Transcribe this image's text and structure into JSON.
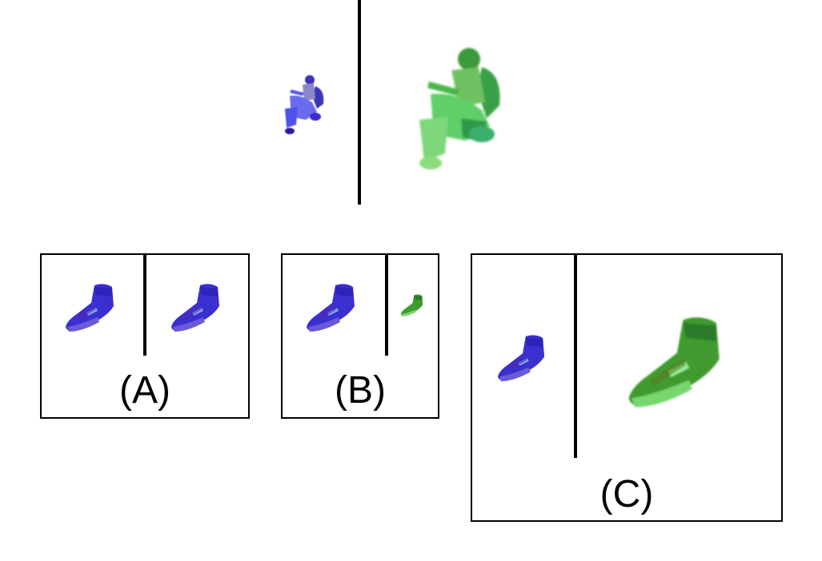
{
  "figure": {
    "top": {
      "left_object": "scooter-blue",
      "right_object": "scooter-green"
    },
    "panels": [
      {
        "label": "(A)",
        "left_object": "shoe-blue",
        "right_object": "shoe-blue"
      },
      {
        "label": "(B)",
        "left_object": "shoe-blue",
        "right_object": "shoe-green-small"
      },
      {
        "label": "(C)",
        "left_object": "shoe-blue",
        "right_object": "shoe-green-large"
      }
    ]
  },
  "colors": {
    "blue_primary": "#3a2fd0",
    "blue_light": "#6a6cf0",
    "blue_dark": "#24178f",
    "green_primary": "#3f9a2f",
    "green_light": "#78d66c",
    "green_dark": "#2c7a2a",
    "divider": "#000000"
  }
}
